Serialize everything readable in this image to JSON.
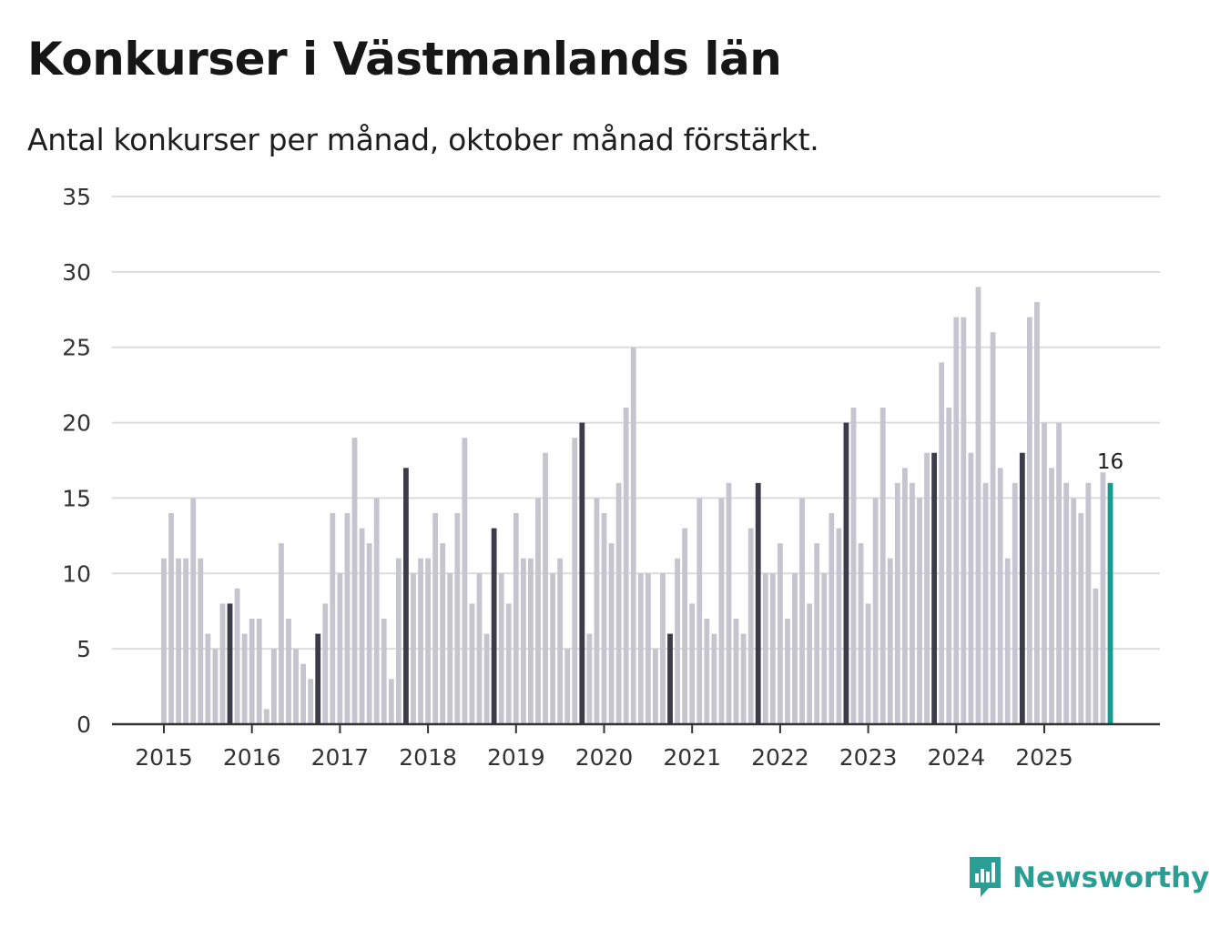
{
  "title": "Konkurser i Västmanlands län",
  "subtitle": "Antal konkurser per månad, oktober månad förstärkt.",
  "brand": "Newsworthy",
  "colors": {
    "regular": "#c5c4cf",
    "october": "#3c3b49",
    "latest": "#119e92",
    "grid": "#dcdcdc",
    "axis": "#333333",
    "brand": "#2a9d94"
  },
  "chart_data": {
    "type": "bar",
    "title": "Konkurser i Västmanlands län",
    "xlabel": "",
    "ylabel": "",
    "ylim": [
      0,
      35
    ],
    "yticks": [
      0,
      5,
      10,
      15,
      20,
      25,
      30,
      35
    ],
    "xticks": [
      "2015",
      "2016",
      "2017",
      "2018",
      "2019",
      "2020",
      "2021",
      "2022",
      "2023",
      "2024",
      "2025"
    ],
    "start": "2015-01",
    "highlight_month": "oktober",
    "latest_label": "16",
    "values": [
      11,
      14,
      11,
      11,
      15,
      11,
      6,
      5,
      8,
      8,
      9,
      6,
      7,
      7,
      1,
      5,
      12,
      7,
      5,
      4,
      3,
      6,
      8,
      14,
      10,
      14,
      19,
      13,
      12,
      15,
      7,
      3,
      11,
      17,
      10,
      11,
      11,
      14,
      12,
      10,
      14,
      19,
      8,
      10,
      6,
      13,
      10,
      8,
      14,
      11,
      11,
      15,
      18,
      10,
      11,
      5,
      19,
      20,
      6,
      15,
      14,
      12,
      16,
      21,
      25,
      10,
      10,
      5,
      10,
      6,
      11,
      13,
      8,
      15,
      7,
      6,
      15,
      16,
      7,
      6,
      13,
      16,
      10,
      10,
      12,
      7,
      10,
      15,
      8,
      12,
      10,
      14,
      13,
      20,
      21,
      12,
      8,
      15,
      21,
      11,
      16,
      17,
      16,
      15,
      18,
      18,
      24,
      21,
      27,
      27,
      18,
      29,
      16,
      26,
      17,
      11,
      16,
      18,
      27,
      28,
      20,
      17,
      20,
      16,
      15,
      14,
      16,
      9,
      16.7,
      16
    ]
  }
}
